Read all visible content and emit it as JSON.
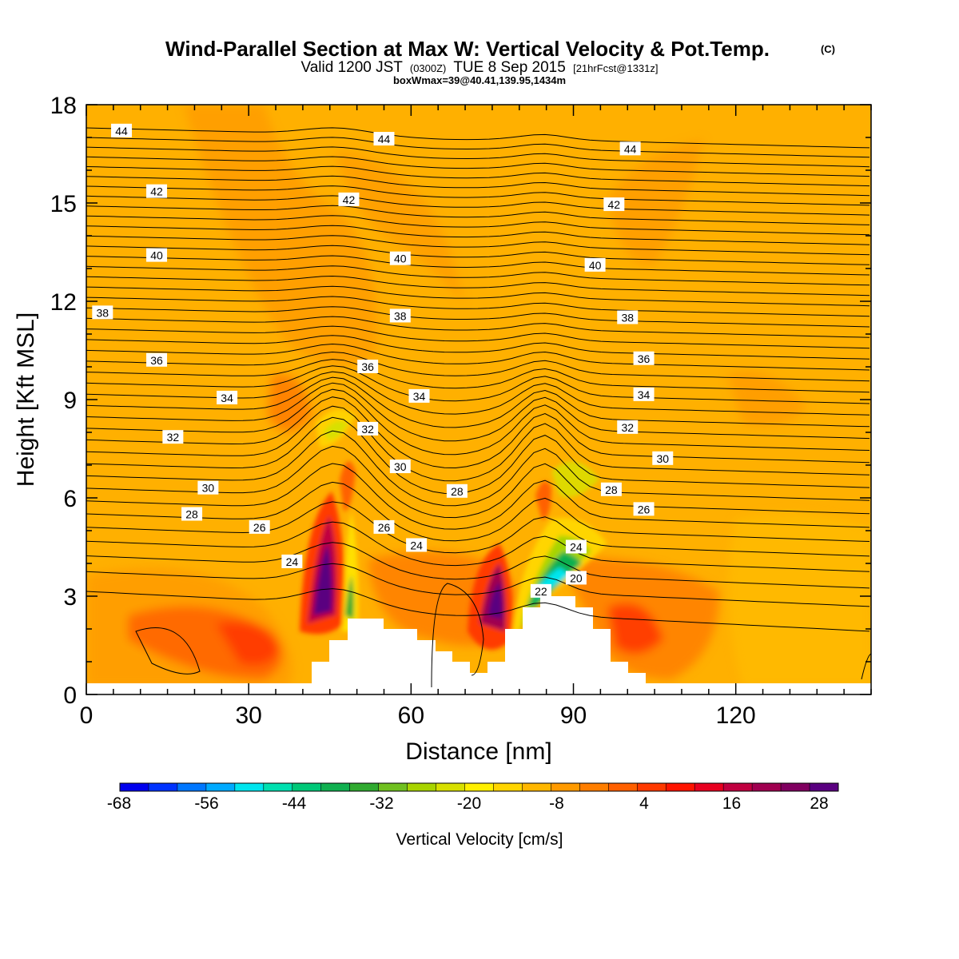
{
  "header": {
    "title_main": "Wind-Parallel Section at Max W: Vertical Velocity & Pot.Temp.",
    "copyright": "(C)",
    "valid_prefix": "Valid 1200 JST",
    "valid_utc": "(0300Z)",
    "valid_date": "TUE 8 Sep 2015",
    "forecast_info": "[21hrFcst@1331z]",
    "box_info": "boxWmax=39@40.41,139.95,1434m"
  },
  "chart_data": {
    "type": "contour",
    "xlabel": "Distance [nm]",
    "ylabel": "Height [Kft MSL]",
    "xlim": [
      0,
      145
    ],
    "ylim": [
      0,
      18
    ],
    "x_ticks": [
      0,
      30,
      60,
      90,
      120
    ],
    "y_ticks": [
      0,
      3,
      6,
      9,
      12,
      15,
      18
    ],
    "shaded_field": "vertical velocity",
    "contour_field": "potential temperature",
    "colorbar": {
      "label": "Vertical Velocity [cm/s]",
      "tick_labels": [
        "-68",
        "-56",
        "-44",
        "-32",
        "-20",
        "-8",
        "4",
        "16",
        "28"
      ],
      "colors": [
        "#0000ee",
        "#0033ff",
        "#0077ff",
        "#00aaff",
        "#00e5ee",
        "#00e0b0",
        "#00c878",
        "#10b050",
        "#30aa30",
        "#70c020",
        "#a8d400",
        "#d8e000",
        "#fff000",
        "#ffd500",
        "#ffb700",
        "#ff9a00",
        "#ff7e00",
        "#ff6000",
        "#ff3a00",
        "#ff1400",
        "#e80020",
        "#c00040",
        "#a00050",
        "#800060",
        "#5a0080"
      ]
    },
    "theta_labels": [
      {
        "value": "44",
        "x": 6.5,
        "y": 17.2
      },
      {
        "value": "44",
        "x": 55,
        "y": 16.95
      },
      {
        "value": "44",
        "x": 100.5,
        "y": 16.65
      },
      {
        "value": "42",
        "x": 13,
        "y": 15.35
      },
      {
        "value": "42",
        "x": 48.5,
        "y": 15.1
      },
      {
        "value": "42",
        "x": 97.5,
        "y": 14.95
      },
      {
        "value": "40",
        "x": 13,
        "y": 13.4
      },
      {
        "value": "40",
        "x": 58,
        "y": 13.3
      },
      {
        "value": "40",
        "x": 94,
        "y": 13.1
      },
      {
        "value": "38",
        "x": 3,
        "y": 11.65
      },
      {
        "value": "38",
        "x": 58,
        "y": 11.55
      },
      {
        "value": "38",
        "x": 100,
        "y": 11.5
      },
      {
        "value": "36",
        "x": 13,
        "y": 10.2
      },
      {
        "value": "36",
        "x": 52,
        "y": 10
      },
      {
        "value": "36",
        "x": 103,
        "y": 10.25
      },
      {
        "value": "34",
        "x": 26,
        "y": 9.05
      },
      {
        "value": "34",
        "x": 61.5,
        "y": 9.1
      },
      {
        "value": "34",
        "x": 103,
        "y": 9.15
      },
      {
        "value": "32",
        "x": 16,
        "y": 7.85
      },
      {
        "value": "32",
        "x": 52,
        "y": 8.1
      },
      {
        "value": "32",
        "x": 100,
        "y": 8.15
      },
      {
        "value": "30",
        "x": 22.5,
        "y": 6.3
      },
      {
        "value": "30",
        "x": 58,
        "y": 6.95
      },
      {
        "value": "30",
        "x": 106.5,
        "y": 7.2
      },
      {
        "value": "28",
        "x": 19.5,
        "y": 5.5
      },
      {
        "value": "28",
        "x": 68.5,
        "y": 6.2
      },
      {
        "value": "28",
        "x": 97,
        "y": 6.25
      },
      {
        "value": "26",
        "x": 32,
        "y": 5.1
      },
      {
        "value": "26",
        "x": 55,
        "y": 5.1
      },
      {
        "value": "26",
        "x": 103,
        "y": 5.65
      },
      {
        "value": "24",
        "x": 38,
        "y": 4.05
      },
      {
        "value": "24",
        "x": 61,
        "y": 4.55
      },
      {
        "value": "24",
        "x": 90.5,
        "y": 4.5
      },
      {
        "value": "22",
        "x": 84,
        "y": 3.15
      },
      {
        "value": "20",
        "x": 90.5,
        "y": 3.55
      }
    ]
  }
}
